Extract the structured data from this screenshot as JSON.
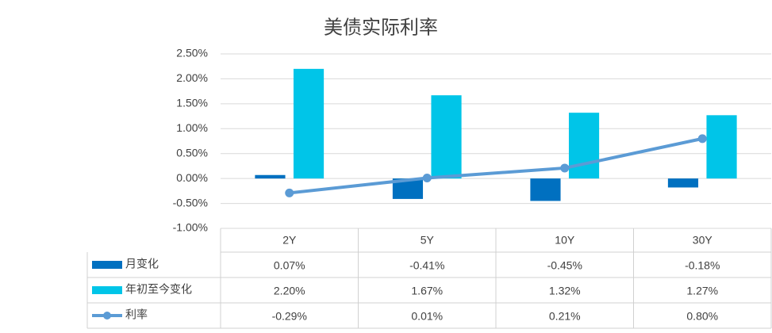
{
  "chart_data": {
    "type": "bar",
    "title": "美债实际利率",
    "categories": [
      "2Y",
      "5Y",
      "10Y",
      "30Y"
    ],
    "series": [
      {
        "name": "月变化",
        "type": "bar",
        "color": "#0070c0",
        "values": [
          0.07,
          -0.41,
          -0.45,
          -0.18
        ],
        "value_labels": [
          "0.07%",
          "-0.41%",
          "-0.45%",
          "-0.18%"
        ]
      },
      {
        "name": "年初至今变化",
        "type": "bar",
        "color": "#00c5e8",
        "values": [
          2.2,
          1.67,
          1.32,
          1.27
        ],
        "value_labels": [
          "2.20%",
          "1.67%",
          "1.32%",
          "1.27%"
        ]
      },
      {
        "name": "利率",
        "type": "line",
        "color": "#5b9bd5",
        "values": [
          -0.29,
          0.01,
          0.21,
          0.8
        ],
        "value_labels": [
          "-0.29%",
          "0.01%",
          "0.21%",
          "0.80%"
        ]
      }
    ],
    "ylim": [
      -1.0,
      2.5
    ],
    "yticks": [
      {
        "value": -1.0,
        "label": "-1.00%"
      },
      {
        "value": -0.5,
        "label": "-0.50%"
      },
      {
        "value": 0,
        "label": "0.00%"
      },
      {
        "value": 0.5,
        "label": "0.50%"
      },
      {
        "value": 1.0,
        "label": "1.00%"
      },
      {
        "value": 1.5,
        "label": "1.50%"
      },
      {
        "value": 2.0,
        "label": "2.00%"
      },
      {
        "value": 2.5,
        "label": "2.50%"
      }
    ],
    "grid": true
  }
}
